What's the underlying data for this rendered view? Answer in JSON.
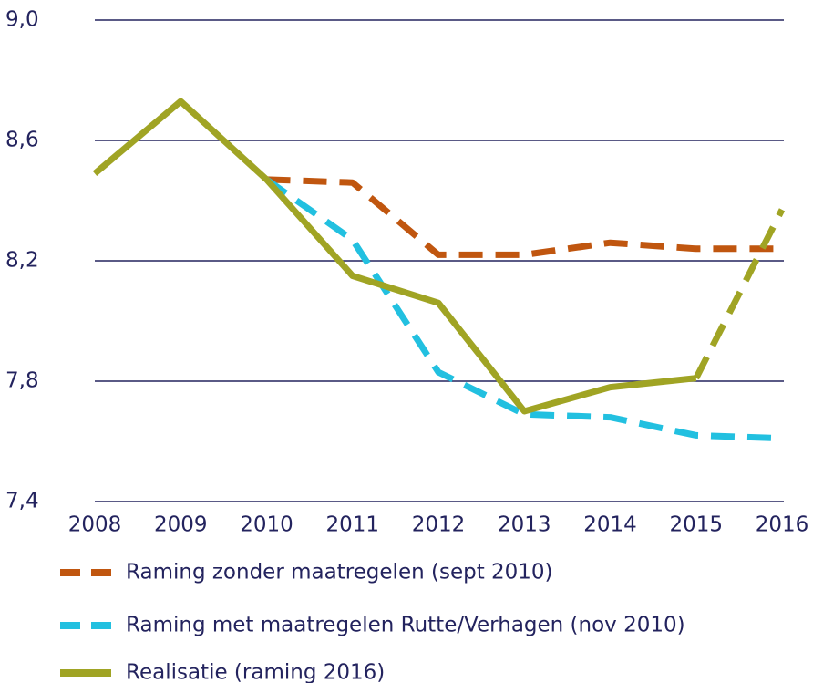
{
  "chart_data": {
    "type": "line",
    "categories": [
      "2008",
      "2009",
      "2010",
      "2011",
      "2012",
      "2013",
      "2014",
      "2015",
      "2016"
    ],
    "series": [
      {
        "name": "Raming zonder maatregelen (sept 2010)",
        "color": "#c0560f",
        "dashed": true,
        "values": [
          null,
          null,
          8.47,
          8.46,
          8.22,
          8.22,
          8.26,
          8.24,
          8.24
        ]
      },
      {
        "name": "Raming met maatregelen Rutte/Verhagen (nov 2010)",
        "color": "#22c0e0",
        "dashed": true,
        "values": [
          null,
          null,
          8.47,
          8.27,
          7.83,
          7.69,
          7.68,
          7.62,
          7.61
        ]
      },
      {
        "name": "Realisatie (raming 2016)",
        "color": "#a0a424",
        "dashed": false,
        "dash_from": "2015",
        "values": [
          8.49,
          8.73,
          8.47,
          8.15,
          8.06,
          7.7,
          7.78,
          7.81,
          8.37
        ]
      }
    ],
    "ylim": [
      7.4,
      9.0
    ],
    "yticks": [
      {
        "value": 7.4,
        "label": "7,4"
      },
      {
        "value": 7.8,
        "label": "7,8"
      },
      {
        "value": 8.2,
        "label": "8,2"
      },
      {
        "value": 8.6,
        "label": "8,6"
      },
      {
        "value": 9.0,
        "label": "9,0"
      }
    ],
    "grid": true,
    "legend": "bottom"
  }
}
